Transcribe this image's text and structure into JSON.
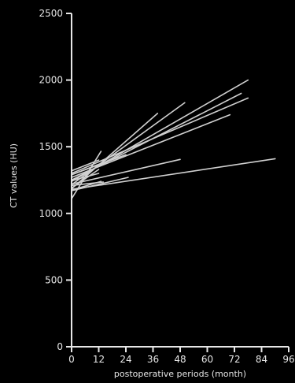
{
  "chart_data": {
    "type": "line",
    "title": "",
    "xlabel": "postoperative periods (month)",
    "ylabel": "CT values (HU)",
    "xlim": [
      0,
      96
    ],
    "ylim": [
      0,
      2500
    ],
    "xticks": [
      0,
      12,
      24,
      36,
      48,
      60,
      72,
      84,
      96
    ],
    "yticks": [
      0,
      500,
      1000,
      1500,
      2000,
      2500
    ],
    "grid": false,
    "legend": "none",
    "colors": {
      "background": "#000000",
      "axis": "#e6e6e6",
      "series": "#d0d0d0"
    },
    "series": [
      {
        "x": [
          0,
          90
        ],
        "y": [
          1180,
          1410
        ]
      },
      {
        "x": [
          0,
          48
        ],
        "y": [
          1220,
          1405
        ]
      },
      {
        "x": [
          0,
          25
        ],
        "y": [
          1170,
          1270
        ]
      },
      {
        "x": [
          0,
          78
        ],
        "y": [
          1240,
          2000
        ]
      },
      {
        "x": [
          0,
          78
        ],
        "y": [
          1300,
          1865
        ]
      },
      {
        "x": [
          0,
          75
        ],
        "y": [
          1250,
          1900
        ]
      },
      {
        "x": [
          0,
          70
        ],
        "y": [
          1270,
          1740
        ]
      },
      {
        "x": [
          0,
          50
        ],
        "y": [
          1215,
          1830
        ]
      },
      {
        "x": [
          0,
          38
        ],
        "y": [
          1185,
          1750
        ]
      },
      {
        "x": [
          0,
          24
        ],
        "y": [
          1290,
          1440
        ]
      },
      {
        "x": [
          0,
          13
        ],
        "y": [
          1110,
          1465
        ]
      },
      {
        "x": [
          0,
          12
        ],
        "y": [
          1320,
          1400
        ]
      },
      {
        "x": [
          0,
          12
        ],
        "y": [
          1190,
          1330
        ]
      },
      {
        "x": [
          0,
          13
        ],
        "y": [
          1175,
          1240
        ]
      },
      {
        "x": [
          0,
          13
        ],
        "y": [
          1290,
          1375
        ]
      },
      {
        "x": [
          0,
          12
        ],
        "y": [
          1245,
          1300
        ]
      },
      {
        "x": [
          0,
          14
        ],
        "y": [
          1210,
          1235
        ]
      }
    ]
  }
}
